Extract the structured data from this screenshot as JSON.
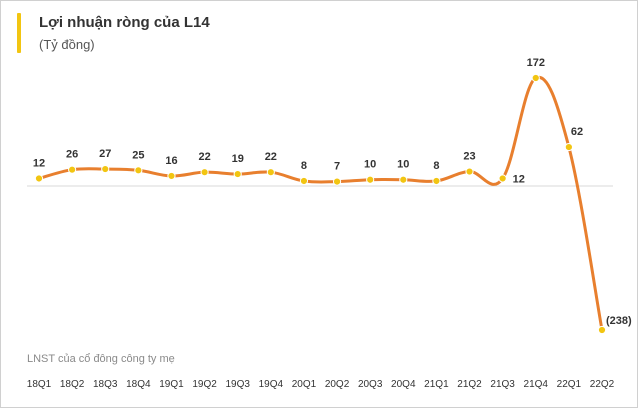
{
  "header": {
    "title": "Lợi nhuận ròng của L14",
    "subtitle": "(Tỷ đồng)"
  },
  "footer": {
    "source": "LNST của cổ đông công ty mẹ"
  },
  "colors": {
    "line": "#E87F2E",
    "marker": "#F2C511",
    "accent": "#F2C511",
    "baseline": "#d9d9d9"
  },
  "chart_data": {
    "type": "line",
    "title": "Lợi nhuận ròng của L14",
    "ylabel": "(Tỷ đồng)",
    "xlabel": "",
    "categories": [
      "18Q1",
      "18Q2",
      "18Q3",
      "18Q4",
      "19Q1",
      "19Q2",
      "19Q3",
      "19Q4",
      "20Q1",
      "20Q2",
      "20Q3",
      "20Q4",
      "21Q1",
      "21Q2",
      "21Q3",
      "21Q4",
      "22Q1",
      "22Q2"
    ],
    "values": [
      12,
      26,
      27,
      25,
      16,
      22,
      19,
      22,
      8,
      7,
      10,
      10,
      8,
      23,
      12,
      172,
      62,
      -238
    ],
    "data_labels": [
      "12",
      "26",
      "27",
      "25",
      "16",
      "22",
      "19",
      "22",
      "8",
      "7",
      "10",
      "10",
      "8",
      "23",
      "12",
      "172",
      "62",
      "(238)"
    ],
    "series": [
      {
        "values": [
          12,
          26,
          27,
          25,
          16,
          22,
          19,
          22,
          8,
          7,
          10,
          10,
          8,
          23,
          12,
          172,
          62,
          -238
        ]
      }
    ],
    "ylim": [
      -250,
      200
    ],
    "grid": false,
    "legend": "none",
    "smooth": true
  }
}
